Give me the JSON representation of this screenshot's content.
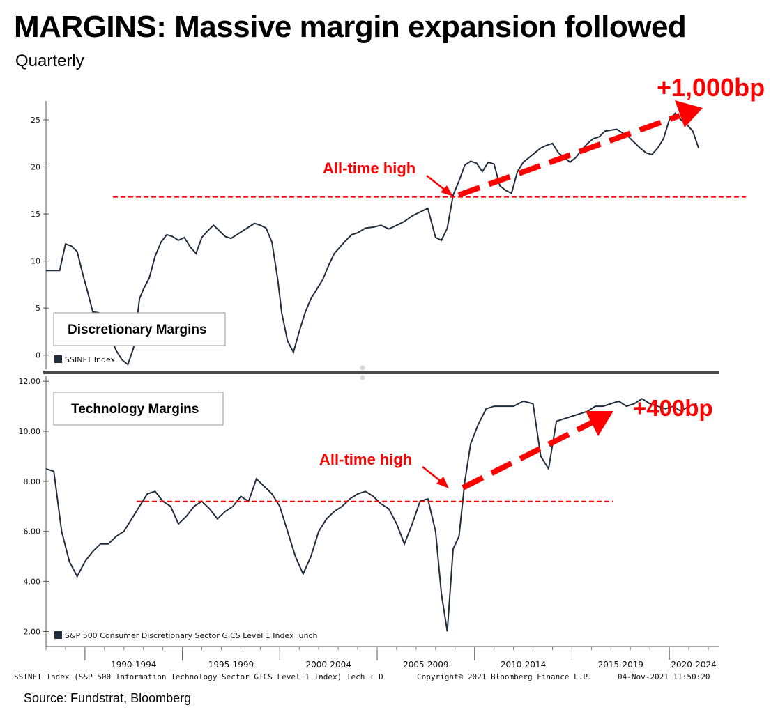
{
  "title": "MARGINS: Massive margin expansion followed",
  "subtitle": "Quarterly",
  "source": "Source: Fundstrat, Bloomberg",
  "footer": {
    "left": "SSINFT Index (S&P 500 Information Technology Sector GICS Level 1 Index) Tech + D",
    "middle": "Copyright© 2021 Bloomberg Finance L.P.",
    "right": "04-Nov-2021 11:50:20"
  },
  "colors": {
    "line": "#1f2d3d",
    "annotation": "#ff0000",
    "axis": "#555555",
    "divider": "#4a4a4a"
  },
  "chart_data": [
    {
      "type": "line",
      "panel_label": "Discretionary Margins",
      "legend": "SSINFT Index",
      "ylim": [
        -1.5,
        27
      ],
      "yticks": [
        0,
        5,
        10,
        15,
        20,
        25
      ],
      "ytick_labels": [
        "0",
        "5",
        "10",
        "15",
        "20",
        "25"
      ],
      "x_periods": [
        "1990-1994",
        "1995-1999",
        "2000-2004",
        "2005-2009",
        "2010-2014",
        "2015-2019",
        "2020-2024"
      ],
      "x": [
        1988.0,
        1988.7,
        1989.0,
        1989.3,
        1989.6,
        1989.9,
        1990.1,
        1990.4,
        1990.7,
        1991.0,
        1991.3,
        1991.6,
        1991.9,
        1992.2,
        1992.5,
        1992.8,
        1993.0,
        1993.3,
        1993.6,
        1993.9,
        1994.2,
        1994.5,
        1994.8,
        1995.1,
        1995.4,
        1995.7,
        1996.0,
        1996.3,
        1996.6,
        1996.9,
        1997.2,
        1997.5,
        1997.8,
        1998.1,
        1998.4,
        1998.7,
        1999.0,
        1999.3,
        1999.6,
        1999.9,
        2000.1,
        2000.4,
        2000.7,
        2001.0,
        2001.3,
        2001.6,
        2001.9,
        2002.2,
        2002.5,
        2002.8,
        2003.1,
        2003.4,
        2003.7,
        2004.0,
        2004.4,
        2004.8,
        2005.2,
        2005.6,
        2006.0,
        2006.4,
        2006.8,
        2007.2,
        2007.6,
        2008.0,
        2008.3,
        2008.6,
        2008.9,
        2009.2,
        2009.5,
        2009.8,
        2010.1,
        2010.4,
        2010.7,
        2011.0,
        2011.3,
        2011.6,
        2011.9,
        2012.2,
        2012.5,
        2012.8,
        2013.1,
        2013.4,
        2013.7,
        2014.0,
        2014.3,
        2014.6,
        2014.9,
        2015.2,
        2015.5,
        2015.8,
        2016.1,
        2016.4,
        2016.7,
        2017.0,
        2017.3,
        2017.6,
        2017.9,
        2018.2,
        2018.5,
        2018.8,
        2019.1,
        2019.4,
        2019.7,
        2020.0,
        2020.3,
        2020.6,
        2020.9,
        2021.2,
        2021.5
      ],
      "y": [
        9.0,
        9.0,
        11.8,
        11.6,
        11.0,
        8.5,
        7.0,
        4.6,
        4.5,
        4.2,
        2.0,
        0.5,
        -0.5,
        -1.0,
        0.8,
        6.0,
        7.0,
        8.2,
        10.5,
        12.0,
        12.8,
        12.6,
        12.2,
        12.5,
        11.5,
        10.8,
        12.5,
        13.2,
        13.8,
        13.2,
        12.6,
        12.4,
        12.8,
        13.2,
        13.6,
        14.0,
        13.8,
        13.5,
        12.0,
        8.0,
        4.5,
        1.5,
        0.3,
        2.5,
        4.5,
        6.0,
        7.0,
        8.0,
        9.5,
        10.8,
        11.5,
        12.2,
        12.8,
        13.0,
        13.5,
        13.6,
        13.8,
        13.4,
        13.8,
        14.2,
        14.8,
        15.2,
        15.6,
        12.5,
        12.2,
        13.5,
        17.0,
        18.5,
        20.2,
        20.6,
        20.4,
        19.5,
        20.5,
        20.3,
        18.0,
        17.5,
        17.2,
        19.5,
        20.5,
        21.0,
        21.5,
        22.0,
        22.3,
        22.5,
        21.5,
        21.0,
        20.5,
        21.0,
        21.8,
        22.5,
        23.0,
        23.2,
        23.8,
        23.9,
        24.0,
        23.6,
        23.2,
        22.6,
        22.0,
        21.5,
        21.3,
        22.0,
        23.0,
        25.0,
        25.7,
        25.0,
        24.5,
        23.8,
        22.0
      ],
      "reference_level": 16.8,
      "annotations": [
        "All-time high",
        "+1,000bp"
      ]
    },
    {
      "type": "line",
      "panel_label": "Technology Margins",
      "legend": "S&P 500 Consumer Discretionary Sector GICS Level 1 Index  unch",
      "ylim": [
        1.4,
        12.2
      ],
      "yticks": [
        2,
        4,
        6,
        8,
        10,
        12
      ],
      "ytick_labels": [
        "2.00",
        "4.00",
        "6.00",
        "8.00",
        "10.00",
        "12.00"
      ],
      "x_periods": [
        "1990-1994",
        "1995-1999",
        "2000-2004",
        "2005-2009",
        "2010-2014",
        "2015-2019",
        "2020-2024"
      ],
      "x": [
        1988.0,
        1988.4,
        1988.8,
        1989.2,
        1989.6,
        1990.0,
        1990.4,
        1990.8,
        1991.2,
        1991.6,
        1992.0,
        1992.4,
        1992.8,
        1993.2,
        1993.6,
        1994.0,
        1994.4,
        1994.8,
        1995.2,
        1995.6,
        1996.0,
        1996.4,
        1996.8,
        1997.2,
        1997.6,
        1998.0,
        1998.4,
        1998.8,
        1999.2,
        1999.6,
        2000.0,
        2000.4,
        2000.8,
        2001.2,
        2001.6,
        2002.0,
        2002.4,
        2002.8,
        2003.2,
        2003.6,
        2004.0,
        2004.4,
        2004.8,
        2005.2,
        2005.6,
        2006.0,
        2006.4,
        2006.8,
        2007.2,
        2007.6,
        2008.0,
        2008.3,
        2008.6,
        2008.9,
        2009.2,
        2009.5,
        2009.8,
        2010.2,
        2010.6,
        2011.0,
        2011.5,
        2012.0,
        2012.5,
        2013.0,
        2013.4,
        2013.8,
        2014.2,
        2014.6,
        2015.0,
        2015.4,
        2015.8,
        2016.2,
        2016.6,
        2017.0,
        2017.4,
        2017.8,
        2018.2,
        2018.6,
        2019.0,
        2019.4,
        2019.8,
        2020.2,
        2020.6,
        2021.0,
        2021.4
      ],
      "y": [
        8.5,
        8.4,
        6.0,
        4.8,
        4.2,
        4.8,
        5.2,
        5.5,
        5.5,
        5.8,
        6.0,
        6.5,
        7.0,
        7.5,
        7.6,
        7.2,
        7.0,
        6.3,
        6.6,
        7.0,
        7.2,
        6.9,
        6.5,
        6.8,
        7.0,
        7.4,
        7.2,
        8.1,
        7.8,
        7.5,
        7.0,
        6.0,
        5.0,
        4.3,
        5.0,
        6.0,
        6.5,
        6.8,
        7.0,
        7.3,
        7.5,
        7.6,
        7.4,
        7.1,
        6.9,
        6.3,
        5.5,
        6.3,
        7.2,
        7.3,
        6.0,
        3.5,
        2.0,
        5.3,
        5.8,
        8.0,
        9.5,
        10.3,
        10.9,
        11.0,
        11.0,
        11.0,
        11.2,
        11.1,
        9.0,
        8.5,
        10.4,
        10.5,
        10.6,
        10.7,
        10.8,
        11.0,
        11.0,
        11.1,
        11.2,
        11.0,
        11.1,
        11.3,
        11.1,
        11.0,
        10.9,
        11.0,
        10.8,
        11.0,
        11.1
      ],
      "reference_level": 7.2,
      "annotations": [
        "All-time high",
        "+400bp"
      ]
    }
  ]
}
